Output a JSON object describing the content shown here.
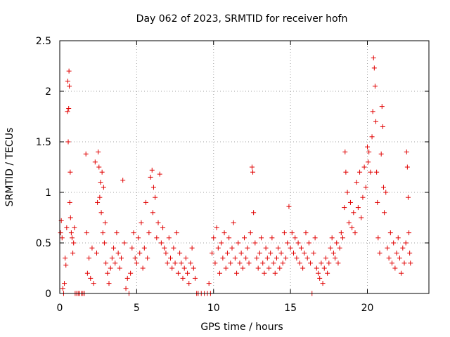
{
  "chart_data": {
    "type": "scatter",
    "title": "Day 062 of 2023, SRMTID for receiver hofn",
    "xlabel": "GPS time / hours",
    "ylabel": "SRMTID / TECUs",
    "xlim": [
      0,
      24
    ],
    "ylim": [
      0,
      2.5
    ],
    "xticks": [
      "0",
      "5",
      "10",
      "15",
      "20"
    ],
    "yticks": [
      "0",
      "0.5",
      "1",
      "1.5",
      "2",
      "2.5"
    ],
    "grid": true,
    "marker": "+",
    "color": "#e00000",
    "series": [
      {
        "name": "SRMTID hofn",
        "points": [
          [
            0.05,
            0.6
          ],
          [
            0.1,
            0.72
          ],
          [
            0.15,
            0.55
          ],
          [
            0.2,
            0.05
          ],
          [
            0.25,
            0.0
          ],
          [
            0.3,
            0.1
          ],
          [
            0.35,
            0.35
          ],
          [
            0.4,
            0.28
          ],
          [
            0.45,
            0.65
          ],
          [
            0.5,
            1.8
          ],
          [
            0.52,
            2.1
          ],
          [
            0.55,
            1.5
          ],
          [
            0.58,
            1.83
          ],
          [
            0.6,
            2.2
          ],
          [
            0.62,
            2.05
          ],
          [
            0.65,
            0.9
          ],
          [
            0.68,
            1.2
          ],
          [
            0.7,
            0.75
          ],
          [
            0.75,
            0.6
          ],
          [
            0.8,
            0.55
          ],
          [
            0.85,
            0.4
          ],
          [
            0.9,
            0.5
          ],
          [
            0.95,
            0.65
          ],
          [
            1.0,
            0.0
          ],
          [
            1.1,
            0.0
          ],
          [
            1.2,
            0.0
          ],
          [
            1.3,
            0.0
          ],
          [
            1.4,
            0.0
          ],
          [
            1.5,
            0.0
          ],
          [
            1.6,
            0.0
          ],
          [
            1.7,
            1.38
          ],
          [
            1.75,
            0.6
          ],
          [
            1.8,
            0.2
          ],
          [
            1.9,
            0.35
          ],
          [
            2.0,
            0.15
          ],
          [
            2.1,
            0.45
          ],
          [
            2.2,
            0.1
          ],
          [
            2.3,
            1.3
          ],
          [
            2.4,
            0.4
          ],
          [
            2.45,
            0.9
          ],
          [
            2.5,
            1.4
          ],
          [
            2.55,
            1.25
          ],
          [
            2.6,
            0.95
          ],
          [
            2.65,
            1.1
          ],
          [
            2.7,
            0.8
          ],
          [
            2.75,
            1.2
          ],
          [
            2.8,
            0.6
          ],
          [
            2.85,
            1.05
          ],
          [
            2.9,
            0.5
          ],
          [
            2.95,
            0.7
          ],
          [
            3.0,
            0.3
          ],
          [
            3.1,
            0.2
          ],
          [
            3.2,
            0.1
          ],
          [
            3.3,
            0.25
          ],
          [
            3.4,
            0.35
          ],
          [
            3.5,
            0.45
          ],
          [
            3.6,
            0.3
          ],
          [
            3.7,
            0.6
          ],
          [
            3.8,
            0.4
          ],
          [
            3.9,
            0.25
          ],
          [
            4.0,
            0.35
          ],
          [
            4.1,
            1.12
          ],
          [
            4.2,
            0.5
          ],
          [
            4.3,
            0.05
          ],
          [
            4.4,
            0.15
          ],
          [
            4.5,
            0.0
          ],
          [
            4.6,
            0.2
          ],
          [
            4.7,
            0.45
          ],
          [
            4.8,
            0.6
          ],
          [
            4.9,
            0.35
          ],
          [
            5.0,
            0.3
          ],
          [
            5.1,
            0.55
          ],
          [
            5.2,
            0.4
          ],
          [
            5.3,
            0.7
          ],
          [
            5.4,
            0.25
          ],
          [
            5.5,
            0.45
          ],
          [
            5.6,
            0.9
          ],
          [
            5.7,
            0.35
          ],
          [
            5.8,
            0.6
          ],
          [
            5.9,
            1.15
          ],
          [
            6.0,
            1.22
          ],
          [
            6.05,
            0.8
          ],
          [
            6.1,
            1.05
          ],
          [
            6.2,
            0.95
          ],
          [
            6.3,
            0.55
          ],
          [
            6.4,
            0.7
          ],
          [
            6.5,
            1.18
          ],
          [
            6.6,
            0.5
          ],
          [
            6.7,
            0.65
          ],
          [
            6.8,
            0.45
          ],
          [
            6.9,
            0.4
          ],
          [
            7.0,
            0.3
          ],
          [
            7.1,
            0.55
          ],
          [
            7.2,
            0.35
          ],
          [
            7.3,
            0.25
          ],
          [
            7.4,
            0.45
          ],
          [
            7.5,
            0.3
          ],
          [
            7.6,
            0.6
          ],
          [
            7.7,
            0.2
          ],
          [
            7.8,
            0.4
          ],
          [
            7.9,
            0.3
          ],
          [
            8.0,
            0.15
          ],
          [
            8.1,
            0.25
          ],
          [
            8.2,
            0.35
          ],
          [
            8.3,
            0.2
          ],
          [
            8.4,
            0.1
          ],
          [
            8.5,
            0.3
          ],
          [
            8.6,
            0.45
          ],
          [
            8.7,
            0.25
          ],
          [
            8.8,
            0.15
          ],
          [
            8.9,
            0.0
          ],
          [
            9.0,
            0.0
          ],
          [
            9.2,
            0.0
          ],
          [
            9.4,
            0.0
          ],
          [
            9.6,
            0.0
          ],
          [
            9.7,
            0.1
          ],
          [
            9.8,
            0.0
          ],
          [
            9.9,
            0.4
          ],
          [
            10.0,
            0.55
          ],
          [
            10.1,
            0.3
          ],
          [
            10.2,
            0.65
          ],
          [
            10.3,
            0.45
          ],
          [
            10.4,
            0.2
          ],
          [
            10.5,
            0.5
          ],
          [
            10.6,
            0.35
          ],
          [
            10.7,
            0.6
          ],
          [
            10.8,
            0.25
          ],
          [
            10.9,
            0.4
          ],
          [
            11.0,
            0.55
          ],
          [
            11.1,
            0.3
          ],
          [
            11.2,
            0.45
          ],
          [
            11.3,
            0.7
          ],
          [
            11.4,
            0.35
          ],
          [
            11.5,
            0.2
          ],
          [
            11.6,
            0.5
          ],
          [
            11.7,
            0.3
          ],
          [
            11.8,
            0.4
          ],
          [
            11.9,
            0.25
          ],
          [
            12.0,
            0.55
          ],
          [
            12.1,
            0.35
          ],
          [
            12.2,
            0.45
          ],
          [
            12.3,
            0.3
          ],
          [
            12.4,
            0.6
          ],
          [
            12.5,
            1.25
          ],
          [
            12.55,
            1.2
          ],
          [
            12.6,
            0.8
          ],
          [
            12.7,
            0.5
          ],
          [
            12.8,
            0.35
          ],
          [
            12.9,
            0.25
          ],
          [
            13.0,
            0.4
          ],
          [
            13.1,
            0.55
          ],
          [
            13.2,
            0.3
          ],
          [
            13.3,
            0.2
          ],
          [
            13.4,
            0.45
          ],
          [
            13.5,
            0.35
          ],
          [
            13.6,
            0.25
          ],
          [
            13.7,
            0.4
          ],
          [
            13.8,
            0.55
          ],
          [
            13.9,
            0.3
          ],
          [
            14.0,
            0.2
          ],
          [
            14.1,
            0.35
          ],
          [
            14.2,
            0.45
          ],
          [
            14.3,
            0.25
          ],
          [
            14.4,
            0.4
          ],
          [
            14.5,
            0.3
          ],
          [
            14.6,
            0.6
          ],
          [
            14.7,
            0.35
          ],
          [
            14.8,
            0.5
          ],
          [
            14.9,
            0.86
          ],
          [
            15.0,
            0.45
          ],
          [
            15.1,
            0.6
          ],
          [
            15.2,
            0.4
          ],
          [
            15.3,
            0.55
          ],
          [
            15.4,
            0.35
          ],
          [
            15.5,
            0.5
          ],
          [
            15.6,
            0.3
          ],
          [
            15.7,
            0.45
          ],
          [
            15.8,
            0.25
          ],
          [
            15.9,
            0.4
          ],
          [
            16.0,
            0.6
          ],
          [
            16.1,
            0.35
          ],
          [
            16.2,
            0.5
          ],
          [
            16.3,
            0.3
          ],
          [
            16.4,
            0.0
          ],
          [
            16.5,
            0.4
          ],
          [
            16.6,
            0.55
          ],
          [
            16.7,
            0.25
          ],
          [
            16.8,
            0.2
          ],
          [
            16.9,
            0.15
          ],
          [
            17.0,
            0.3
          ],
          [
            17.1,
            0.1
          ],
          [
            17.2,
            0.25
          ],
          [
            17.3,
            0.35
          ],
          [
            17.4,
            0.2
          ],
          [
            17.5,
            0.3
          ],
          [
            17.6,
            0.45
          ],
          [
            17.7,
            0.55
          ],
          [
            17.8,
            0.4
          ],
          [
            17.9,
            0.35
          ],
          [
            18.0,
            0.5
          ],
          [
            18.1,
            0.3
          ],
          [
            18.2,
            0.45
          ],
          [
            18.3,
            0.6
          ],
          [
            18.4,
            0.55
          ],
          [
            18.5,
            0.85
          ],
          [
            18.55,
            1.4
          ],
          [
            18.6,
            1.2
          ],
          [
            18.7,
            1.0
          ],
          [
            18.8,
            0.7
          ],
          [
            18.9,
            0.9
          ],
          [
            19.0,
            0.65
          ],
          [
            19.1,
            0.8
          ],
          [
            19.2,
            0.6
          ],
          [
            19.3,
            1.1
          ],
          [
            19.4,
            0.85
          ],
          [
            19.5,
            1.2
          ],
          [
            19.6,
            0.75
          ],
          [
            19.7,
            0.95
          ],
          [
            19.8,
            1.25
          ],
          [
            19.9,
            1.05
          ],
          [
            20.0,
            1.45
          ],
          [
            20.05,
            1.3
          ],
          [
            20.1,
            1.4
          ],
          [
            20.2,
            1.2
          ],
          [
            20.3,
            1.55
          ],
          [
            20.35,
            1.8
          ],
          [
            20.4,
            2.33
          ],
          [
            20.45,
            2.23
          ],
          [
            20.5,
            2.05
          ],
          [
            20.55,
            1.7
          ],
          [
            20.6,
            1.2
          ],
          [
            20.65,
            0.9
          ],
          [
            20.7,
            0.55
          ],
          [
            20.8,
            0.4
          ],
          [
            20.9,
            1.38
          ],
          [
            20.95,
            1.85
          ],
          [
            21.0,
            1.65
          ],
          [
            21.05,
            1.05
          ],
          [
            21.1,
            0.8
          ],
          [
            21.2,
            1.0
          ],
          [
            21.3,
            0.45
          ],
          [
            21.4,
            0.35
          ],
          [
            21.5,
            0.6
          ],
          [
            21.6,
            0.3
          ],
          [
            21.7,
            0.5
          ],
          [
            21.8,
            0.25
          ],
          [
            21.9,
            0.4
          ],
          [
            22.0,
            0.55
          ],
          [
            22.1,
            0.35
          ],
          [
            22.2,
            0.2
          ],
          [
            22.3,
            0.45
          ],
          [
            22.4,
            0.3
          ],
          [
            22.5,
            0.5
          ],
          [
            22.55,
            1.4
          ],
          [
            22.6,
            1.25
          ],
          [
            22.65,
            0.95
          ],
          [
            22.7,
            0.6
          ],
          [
            22.75,
            0.4
          ],
          [
            22.8,
            0.3
          ]
        ]
      }
    ]
  }
}
